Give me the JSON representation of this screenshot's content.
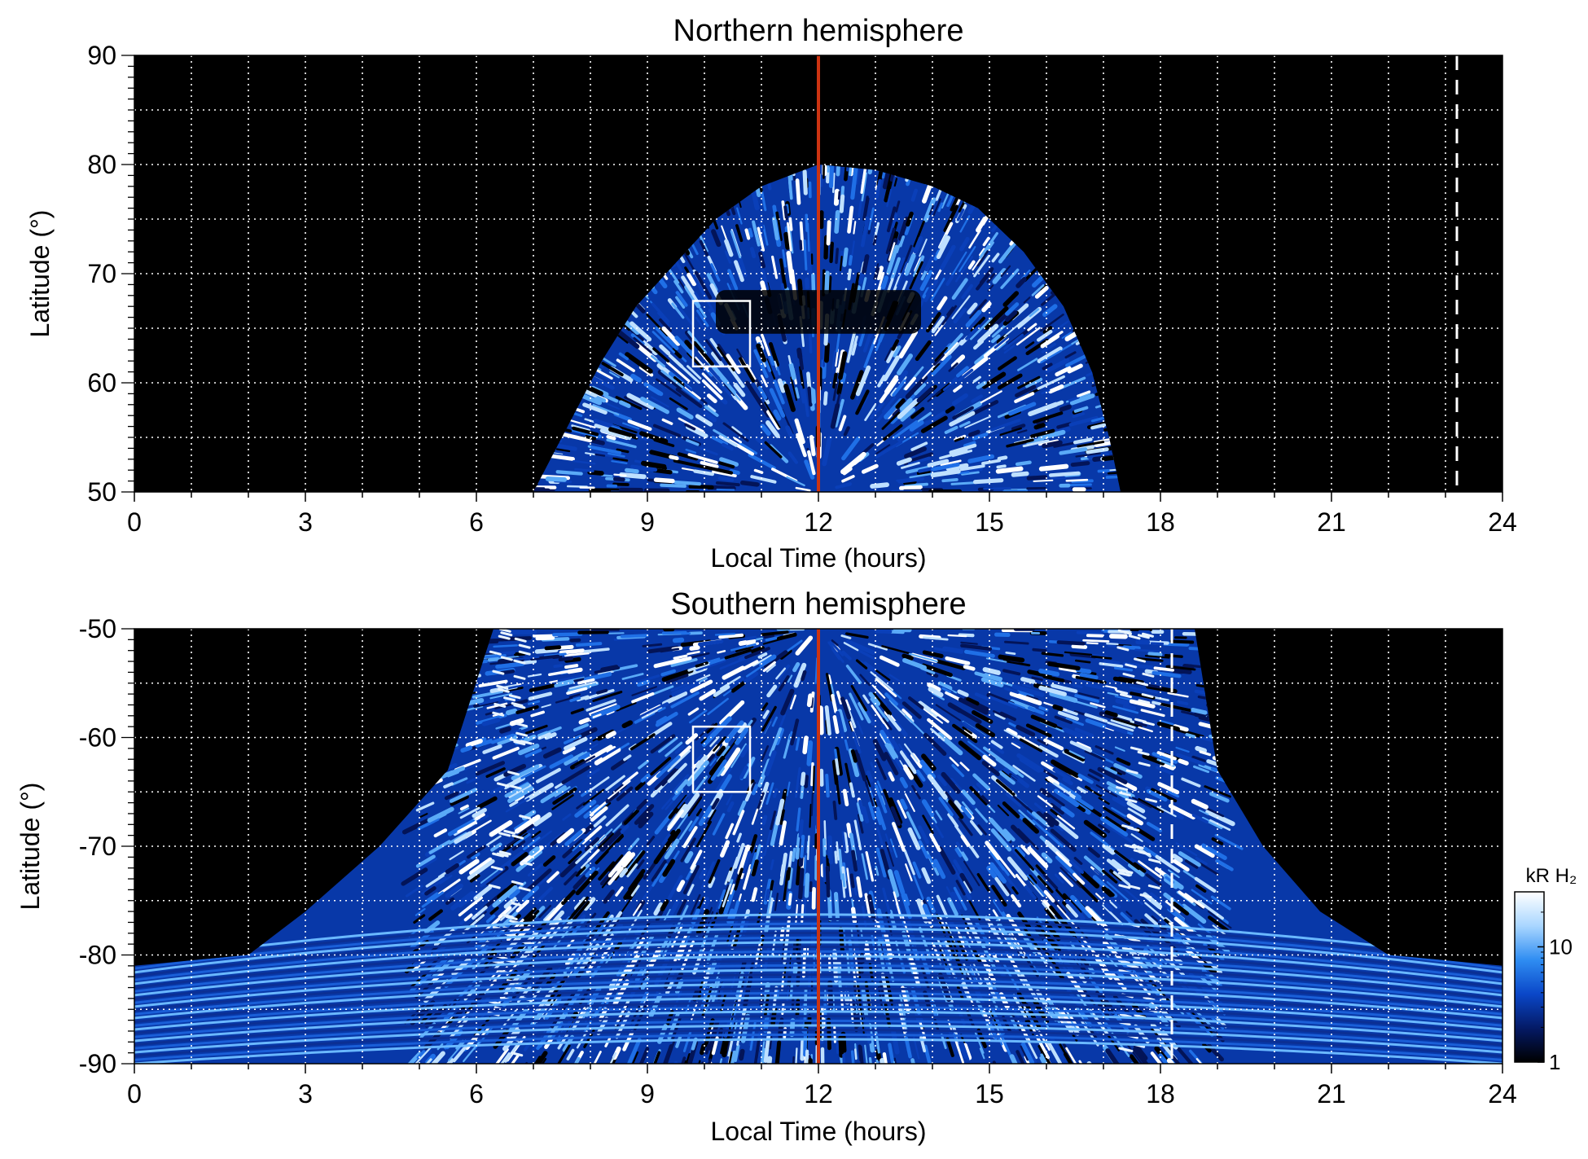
{
  "colors": {
    "plot_background": "#000000",
    "grid": "#ffffff",
    "noon_line": "#cc3311",
    "marker_box": "#ffffff",
    "colormap": [
      "#000000",
      "#041a66",
      "#0a47c8",
      "#2f8df2",
      "#a9d6ff",
      "#ffffff"
    ]
  },
  "chart_data": [
    {
      "type": "heatmap",
      "title": "Northern hemisphere",
      "xlabel": "Local Time (hours)",
      "ylabel": "Latitude (°)",
      "xlim": [
        0,
        24
      ],
      "ylim": [
        50,
        90
      ],
      "xticks": [
        0,
        3,
        6,
        9,
        12,
        15,
        18,
        21,
        24
      ],
      "yticks": [
        50,
        60,
        70,
        80,
        90
      ],
      "grid": true,
      "grid_x_step_hours": 1,
      "grid_y_step_deg": 5,
      "coverage_boundary": [
        [
          7.0,
          50
        ],
        [
          7.3,
          53
        ],
        [
          7.7,
          57
        ],
        [
          8.2,
          62
        ],
        [
          8.8,
          67
        ],
        [
          9.5,
          71
        ],
        [
          10.2,
          75
        ],
        [
          11.0,
          78
        ],
        [
          12.0,
          80
        ],
        [
          13.0,
          79.5
        ],
        [
          14.0,
          78
        ],
        [
          14.8,
          76
        ],
        [
          15.6,
          72
        ],
        [
          16.3,
          67
        ],
        [
          16.8,
          61
        ],
        [
          17.1,
          55
        ],
        [
          17.3,
          50
        ]
      ],
      "dark_band": {
        "from_lt": 10.2,
        "to_lt": 13.8,
        "lat": [
          64.5,
          68.5
        ]
      },
      "noon_line_lt": 12,
      "dashed_line_lt": 23.2,
      "marker_box": {
        "lt": [
          9.8,
          10.8
        ],
        "lat": [
          61.5,
          67.5
        ]
      }
    },
    {
      "type": "heatmap",
      "title": "Southern hemisphere",
      "xlabel": "Local Time (hours)",
      "ylabel": "Latitude (°)",
      "xlim": [
        0,
        24
      ],
      "ylim": [
        -90,
        -50
      ],
      "xticks": [
        0,
        3,
        6,
        9,
        12,
        15,
        18,
        21,
        24
      ],
      "yticks": [
        -90,
        -80,
        -70,
        -60,
        -50
      ],
      "grid": true,
      "grid_x_step_hours": 1,
      "grid_y_step_deg": 5,
      "coverage_boundary": [
        [
          6.3,
          -50
        ],
        [
          5.5,
          -63
        ],
        [
          4.3,
          -70
        ],
        [
          3.0,
          -76
        ],
        [
          2.0,
          -80
        ],
        [
          0,
          -81
        ],
        [
          0,
          -90
        ],
        [
          24,
          -90
        ],
        [
          24,
          -81
        ],
        [
          22.0,
          -80
        ],
        [
          20.8,
          -76
        ],
        [
          19.8,
          -70
        ],
        [
          19.0,
          -63
        ],
        [
          18.6,
          -50
        ]
      ],
      "bright_arcs_lt": [
        6.6,
        17.6
      ],
      "noon_line_lt": 12,
      "dashed_line_lt": 18.2,
      "marker_box": {
        "lt": [
          9.8,
          10.8
        ],
        "lat": [
          -65,
          -59
        ]
      }
    }
  ],
  "colorbar": {
    "label": "kR H₂",
    "scale": "log",
    "range": [
      1,
      30
    ],
    "tick_labels": [
      "1",
      "10"
    ],
    "tick_values": [
      1,
      10
    ]
  }
}
